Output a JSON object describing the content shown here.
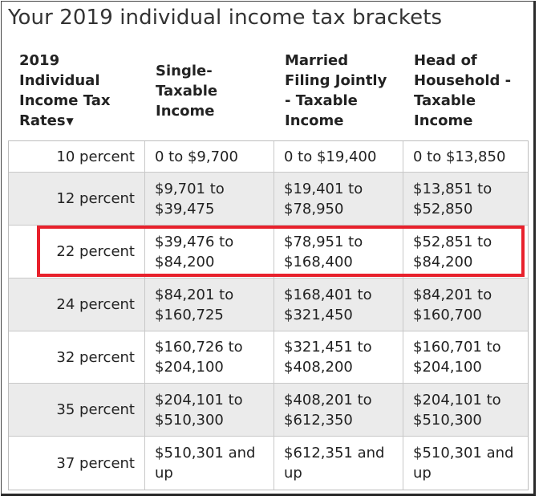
{
  "title": "Your 2019 individual income tax brackets",
  "headers": {
    "col0": [
      "2019",
      "Individual",
      "Income Tax",
      "Rates"
    ],
    "col1": [
      "Single-",
      "Taxable",
      "Income"
    ],
    "col2": [
      "Married",
      "Filing Jointly",
      "- Taxable",
      "Income"
    ],
    "col3": [
      "Head of",
      "Household -",
      "Taxable",
      "Income"
    ],
    "sort_icon": "triangle-down-icon"
  },
  "rows": [
    {
      "rate": "10 percent",
      "single": [
        "0 to $9,700"
      ],
      "married": [
        "0 to $19,400"
      ],
      "head": [
        "0 to $13,850"
      ]
    },
    {
      "rate": "12 percent",
      "single": [
        "$9,701 to",
        "$39,475"
      ],
      "married": [
        "$19,401 to",
        "$78,950"
      ],
      "head": [
        "$13,851 to",
        "$52,850"
      ]
    },
    {
      "rate": "22 percent",
      "single": [
        "$39,476 to",
        "$84,200"
      ],
      "married": [
        "$78,951 to",
        "$168,400"
      ],
      "head": [
        "$52,851 to",
        "$84,200"
      ]
    },
    {
      "rate": "24 percent",
      "single": [
        "$84,201 to",
        "$160,725"
      ],
      "married": [
        "$168,401 to",
        "$321,450"
      ],
      "head": [
        "$84,201 to",
        "$160,700"
      ]
    },
    {
      "rate": "32 percent",
      "single": [
        "$160,726 to",
        "$204,100"
      ],
      "married": [
        "$321,451 to",
        "$408,200"
      ],
      "head": [
        "$160,701 to",
        "$204,100"
      ]
    },
    {
      "rate": "35 percent",
      "single": [
        "$204,101 to",
        "$510,300"
      ],
      "married": [
        "$408,201 to",
        "$612,350"
      ],
      "head": [
        "$204,101 to",
        "$510,300"
      ]
    },
    {
      "rate": "37 percent",
      "single": [
        "$510,301 and",
        "up"
      ],
      "married": [
        "$612,351 and",
        "up"
      ],
      "head": [
        "$510,301 and",
        "up"
      ]
    }
  ],
  "highlight": {
    "row_index": 2,
    "color": "#e8212c"
  },
  "colors": {
    "alt_row": "#ebebeb",
    "text": "#222222"
  }
}
